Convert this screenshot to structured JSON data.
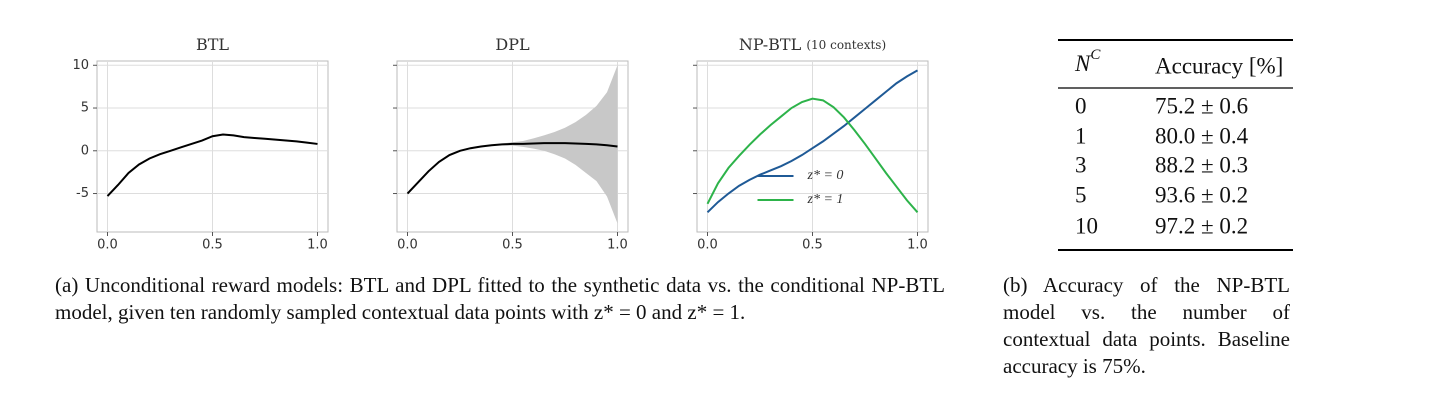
{
  "chart_data": [
    {
      "type": "line",
      "title": "BTL",
      "x": [
        0,
        0.05,
        0.1,
        0.15,
        0.2,
        0.25,
        0.3,
        0.35,
        0.4,
        0.45,
        0.5,
        0.55,
        0.6,
        0.65,
        0.7,
        0.75,
        0.8,
        0.85,
        0.9,
        0.95,
        1.0
      ],
      "series": [
        {
          "color": "#000000",
          "values": [
            -5.3,
            -4.0,
            -2.6,
            -1.6,
            -0.9,
            -0.4,
            0.0,
            0.4,
            0.8,
            1.2,
            1.7,
            1.9,
            1.8,
            1.6,
            1.5,
            1.4,
            1.3,
            1.2,
            1.1,
            0.95,
            0.8
          ]
        }
      ],
      "xlim": [
        -0.05,
        1.05
      ],
      "ylim": [
        -9.5,
        10.5
      ],
      "xticks": [
        {
          "value": 0,
          "label": "0.0"
        },
        0.5,
        {
          "value": 1,
          "label": "1.0"
        }
      ],
      "yticks": [
        -5,
        0,
        5,
        10
      ],
      "grid": true
    },
    {
      "type": "line",
      "title": "DPL",
      "x": [
        0,
        0.05,
        0.1,
        0.15,
        0.2,
        0.25,
        0.3,
        0.35,
        0.4,
        0.45,
        0.5,
        0.55,
        0.6,
        0.65,
        0.7,
        0.75,
        0.8,
        0.85,
        0.9,
        0.95,
        1.0
      ],
      "series": [
        {
          "color": "#000000",
          "values": [
            -5.0,
            -3.7,
            -2.4,
            -1.3,
            -0.5,
            0.0,
            0.3,
            0.5,
            0.65,
            0.75,
            0.8,
            0.8,
            0.85,
            0.9,
            0.9,
            0.9,
            0.85,
            0.8,
            0.75,
            0.65,
            0.5
          ]
        }
      ],
      "band": {
        "color": "#c8c8c8",
        "upper": [
          -5.0,
          -3.7,
          -2.4,
          -1.3,
          -0.5,
          0.0,
          0.3,
          0.5,
          0.7,
          0.85,
          1.0,
          1.15,
          1.45,
          1.8,
          2.2,
          2.7,
          3.35,
          4.2,
          5.25,
          6.85,
          10.0
        ],
        "lower": [
          -5.0,
          -3.7,
          -2.4,
          -1.3,
          -0.5,
          0.0,
          0.3,
          0.5,
          0.6,
          0.65,
          0.6,
          0.45,
          0.25,
          0.0,
          -0.4,
          -0.9,
          -1.65,
          -2.6,
          -3.55,
          -5.35,
          -8.5
        ]
      },
      "xlim": [
        -0.05,
        1.05
      ],
      "ylim": [
        -9.5,
        10.5
      ],
      "xticks": [
        {
          "value": 0,
          "label": "0.0"
        },
        0.5,
        {
          "value": 1,
          "label": "1.0"
        }
      ],
      "yticks": [
        -5,
        0,
        5,
        10
      ],
      "ytick_labels": false,
      "grid": true
    },
    {
      "type": "line",
      "title": "NP-BTL",
      "subtitle": "(10 contexts)",
      "x": [
        0,
        0.05,
        0.1,
        0.15,
        0.2,
        0.25,
        0.3,
        0.35,
        0.4,
        0.45,
        0.5,
        0.55,
        0.6,
        0.65,
        0.7,
        0.75,
        0.8,
        0.85,
        0.9,
        0.95,
        1.0
      ],
      "series": [
        {
          "name": "z* = 0",
          "color": "#1f5a96",
          "values": [
            -7.2,
            -6.0,
            -5.0,
            -4.1,
            -3.4,
            -2.8,
            -2.3,
            -1.8,
            -1.2,
            -0.5,
            0.3,
            1.1,
            2.0,
            2.9,
            3.9,
            4.9,
            5.9,
            6.9,
            7.9,
            8.7,
            9.4
          ]
        },
        {
          "name": "z* = 1",
          "color": "#2db34a",
          "values": [
            -6.2,
            -3.8,
            -2.0,
            -0.6,
            0.7,
            1.9,
            3.0,
            4.0,
            5.0,
            5.7,
            6.1,
            5.9,
            5.1,
            3.9,
            2.4,
            0.8,
            -0.9,
            -2.6,
            -4.2,
            -5.8,
            -7.2
          ]
        }
      ],
      "xlim": [
        -0.05,
        1.05
      ],
      "ylim": [
        -9.5,
        10.5
      ],
      "xticks": [
        {
          "value": 0,
          "label": "0.0"
        },
        0.5,
        {
          "value": 1,
          "label": "1.0"
        }
      ],
      "yticks": [
        -5,
        0,
        5,
        10
      ],
      "ytick_labels": false,
      "grid": true,
      "legend": "lower center"
    }
  ],
  "caption_a": "(a)  Unconditional reward models: BTL and DPL fitted to the synthetic data vs. the conditional NP-BTL model, given ten randomly sampled contextual data points with z* = 0 and z* = 1.",
  "table": {
    "header": [
      {
        "text": "N",
        "sup": "C"
      },
      "Accuracy [%]"
    ],
    "rows": [
      [
        "0",
        "75.2 ± 0.6"
      ],
      [
        "1",
        "80.0 ± 0.4"
      ],
      [
        "3",
        "88.2 ± 0.3"
      ],
      [
        "5",
        "93.6 ± 0.2"
      ],
      [
        "10",
        "97.2 ± 0.2"
      ]
    ]
  },
  "caption_b": "(b)  Accuracy of the NP-BTL model vs. the number of contextual data points. Baseline accuracy is 75%."
}
